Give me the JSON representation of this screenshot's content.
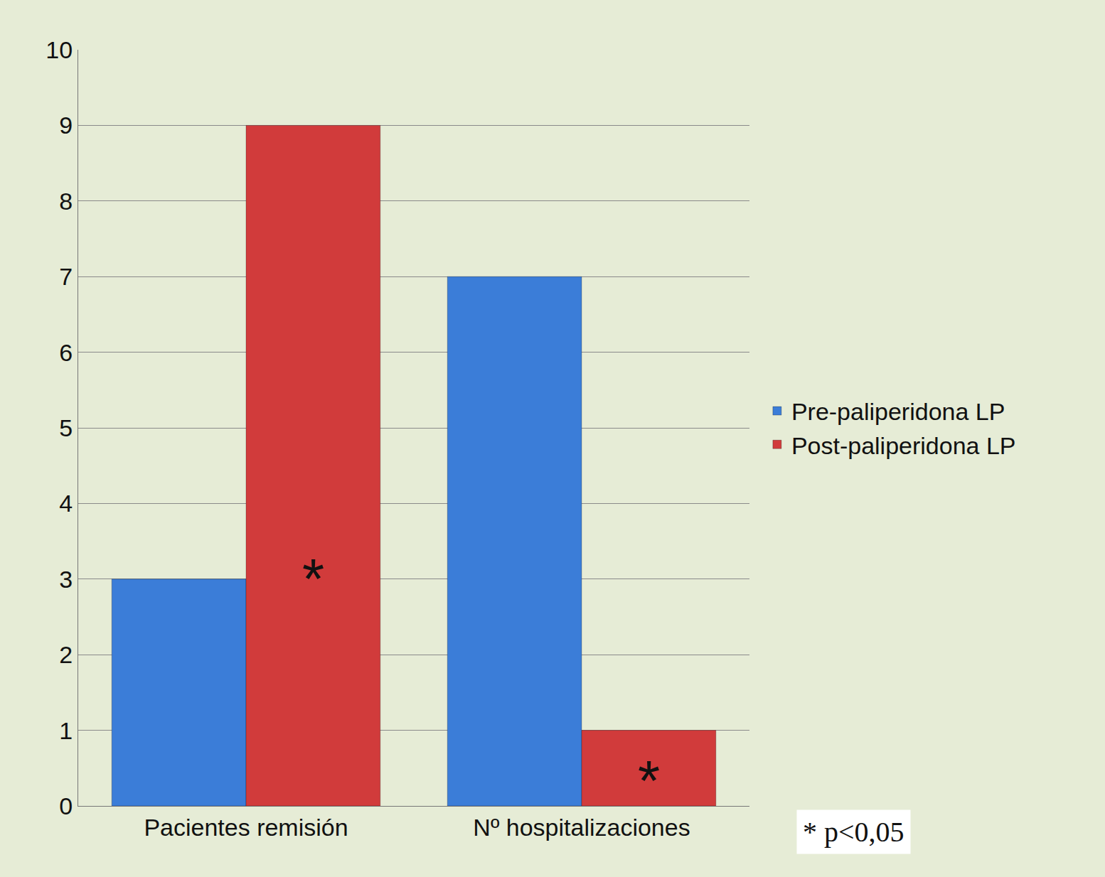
{
  "chart_data": {
    "type": "bar",
    "categories": [
      "Pacientes remisión",
      "Nº hospitalizaciones"
    ],
    "series": [
      {
        "name": "Pre-paliperidona LP",
        "color": "#3b7dd8",
        "values": [
          3,
          7
        ]
      },
      {
        "name": "Post-paliperidona LP",
        "color": "#d13b3b",
        "values": [
          9,
          1
        ]
      }
    ],
    "ylim": [
      0,
      10
    ],
    "yticks": [
      0,
      1,
      2,
      3,
      4,
      5,
      6,
      7,
      8,
      9,
      10
    ],
    "grid": true,
    "legend": "right",
    "annotations": [
      {
        "text": "*",
        "category": "Pacientes remisión",
        "series": "Post-paliperidona LP"
      },
      {
        "text": "*",
        "category": "Nº hospitalizaciones",
        "series": "Post-paliperidona LP"
      },
      {
        "text": "* p<0,05"
      }
    ]
  }
}
